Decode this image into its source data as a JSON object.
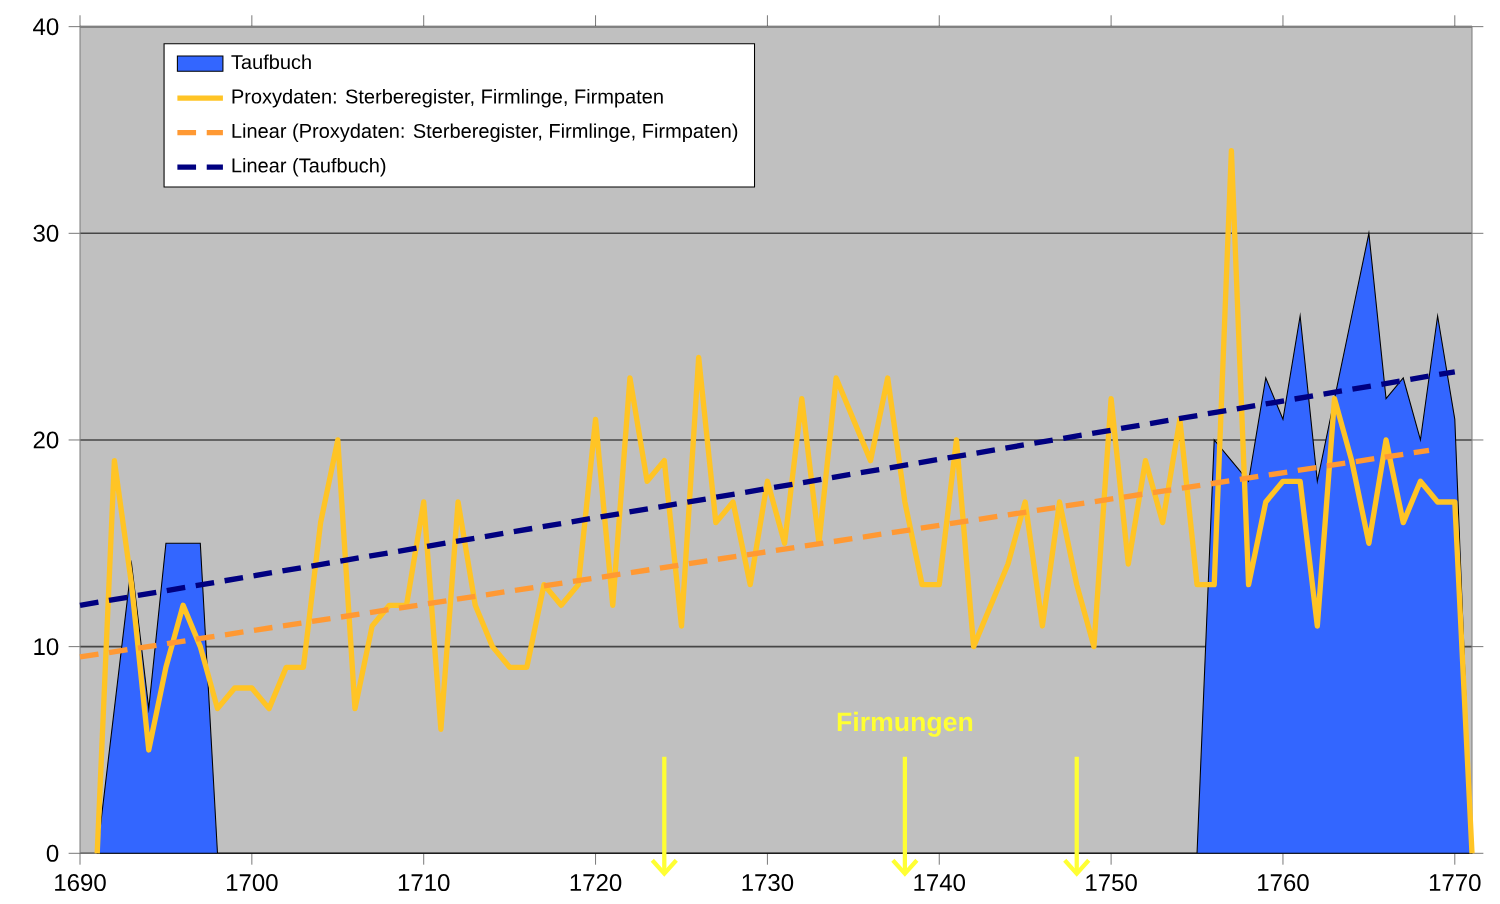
{
  "chart_data": {
    "type": "line",
    "x": [
      1691,
      1692,
      1693,
      1694,
      1695,
      1696,
      1697,
      1698,
      1699,
      1700,
      1701,
      1702,
      1703,
      1704,
      1705,
      1706,
      1707,
      1708,
      1709,
      1710,
      1711,
      1712,
      1713,
      1714,
      1715,
      1716,
      1717,
      1718,
      1719,
      1720,
      1721,
      1722,
      1723,
      1724,
      1725,
      1726,
      1727,
      1728,
      1729,
      1730,
      1731,
      1732,
      1733,
      1734,
      1735,
      1736,
      1737,
      1738,
      1739,
      1740,
      1741,
      1742,
      1743,
      1744,
      1745,
      1746,
      1747,
      1748,
      1749,
      1750,
      1751,
      1752,
      1753,
      1754,
      1755,
      1756,
      1757,
      1758,
      1759,
      1760,
      1761,
      1762,
      1763,
      1764,
      1765,
      1766,
      1767,
      1768,
      1769,
      1770,
      1771
    ],
    "series": [
      {
        "name": "Taufbuch",
        "type": "area",
        "color": "#3366ff",
        "values": [
          0,
          7,
          14,
          7,
          15,
          15,
          15,
          0,
          0,
          0,
          0,
          0,
          0,
          0,
          0,
          0,
          0,
          0,
          0,
          0,
          0,
          0,
          0,
          0,
          0,
          0,
          0,
          0,
          0,
          0,
          0,
          0,
          0,
          0,
          0,
          0,
          0,
          0,
          0,
          0,
          0,
          0,
          0,
          0,
          0,
          0,
          0,
          0,
          0,
          0,
          0,
          0,
          0,
          0,
          0,
          0,
          0,
          0,
          0,
          0,
          0,
          0,
          0,
          0,
          0,
          20,
          19,
          18,
          23,
          21,
          26,
          18,
          22,
          26,
          30,
          22,
          23,
          20,
          26,
          21,
          0
        ]
      },
      {
        "name": "Proxydaten: Sterberegister, Firmlinge, Firmpaten",
        "color": "#ffc425",
        "values": [
          0,
          19,
          13,
          5,
          9,
          12,
          10,
          7,
          8,
          8,
          7,
          9,
          9,
          16,
          20,
          7,
          11,
          12,
          12,
          17,
          6,
          17,
          12,
          10,
          9,
          9,
          13,
          12,
          13,
          21,
          12,
          23,
          18,
          19,
          11,
          24,
          16,
          17,
          13,
          18,
          15,
          22,
          15,
          23,
          21,
          19,
          23,
          17,
          13,
          13,
          20,
          10,
          12,
          14,
          17,
          11,
          17,
          13,
          10,
          22,
          14,
          19,
          16,
          21,
          13,
          13,
          34,
          13,
          17,
          18,
          18,
          11,
          22,
          19,
          15,
          20,
          16,
          18,
          17,
          17,
          0
        ]
      },
      {
        "name": "Linear (Proxydaten: Sterberegister, Firmlinge, Firmpaten)",
        "line_style": "dashed",
        "color": "#ff9933",
        "x": [
          1690,
          1768.5
        ],
        "values": [
          9.5,
          19.5
        ]
      },
      {
        "name": "Linear (Taufbuch)",
        "line_style": "dashed",
        "color": "#000080",
        "x": [
          1690,
          1770
        ],
        "values": [
          12,
          23.3
        ]
      }
    ],
    "xlim": [
      1690,
      1771
    ],
    "xticks": [
      1690,
      1700,
      1710,
      1720,
      1730,
      1740,
      1750,
      1760,
      1770
    ],
    "ylim": [
      0,
      40
    ],
    "yticks": [
      0,
      10,
      20,
      30,
      40
    ],
    "grid": "y",
    "legend": "top left",
    "marker": "none",
    "annotations": [
      "Firmungen"
    ]
  }
}
